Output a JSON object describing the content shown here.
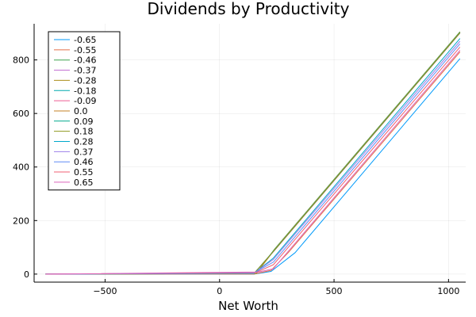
{
  "chart_data": {
    "type": "line",
    "title": "Dividends by Productivity",
    "xlabel": "Net Worth",
    "ylabel": "",
    "xlim": [
      -810,
      1075
    ],
    "ylim": [
      -30,
      935
    ],
    "xticks": [
      -500,
      0,
      500,
      1000
    ],
    "xtick_labels": [
      "−500",
      "0",
      "500",
      "1000"
    ],
    "yticks": [
      0,
      200,
      400,
      600,
      800
    ],
    "ytick_labels": [
      "0",
      "200",
      "400",
      "600",
      "800"
    ],
    "grid": true,
    "legend_position": "top-left",
    "series": [
      {
        "name": "-0.65",
        "color": "#009AFA",
        "x": [
          -760,
          150,
          225,
          330,
          1050
        ],
        "y": [
          0,
          0,
          10,
          80,
          805
        ]
      },
      {
        "name": "-0.55",
        "color": "#E36F47",
        "x": [
          -760,
          150,
          225,
          300,
          1050
        ],
        "y": [
          0,
          0,
          14,
          80,
          830
        ]
      },
      {
        "name": "-0.46",
        "color": "#3EA44E",
        "x": [
          -760,
          160,
          240,
          1050
        ],
        "y": [
          0,
          2,
          93,
          905
        ]
      },
      {
        "name": "-0.37",
        "color": "#C371D2",
        "x": [
          -760,
          150,
          240,
          1050
        ],
        "y": [
          0,
          2,
          88,
          900
        ]
      },
      {
        "name": "-0.28",
        "color": "#AC8E18",
        "x": [
          -760,
          160,
          240,
          1050
        ],
        "y": [
          0,
          2,
          92,
          904
        ]
      },
      {
        "name": "-0.18",
        "color": "#00A9AD",
        "x": [
          -760,
          160,
          240,
          1050
        ],
        "y": [
          0,
          2,
          91,
          903
        ]
      },
      {
        "name": "-0.09",
        "color": "#ED5E93",
        "x": [
          -760,
          150,
          240,
          1050
        ],
        "y": [
          0,
          2,
          90,
          902
        ]
      },
      {
        "name": "0.0",
        "color": "#C68225",
        "x": [
          -760,
          160,
          240,
          1050
        ],
        "y": [
          0,
          2,
          91,
          903
        ]
      },
      {
        "name": "0.09",
        "color": "#00A98E",
        "x": [
          -760,
          150,
          240,
          1050
        ],
        "y": [
          0,
          2,
          90,
          902
        ]
      },
      {
        "name": "0.18",
        "color": "#8E971E",
        "x": [
          -760,
          150,
          240,
          1050
        ],
        "y": [
          0,
          2,
          89,
          901
        ]
      },
      {
        "name": "0.28",
        "color": "#00A8CB",
        "x": [
          -760,
          150,
          235,
          1050
        ],
        "y": [
          0,
          3,
          60,
          880
        ]
      },
      {
        "name": "0.37",
        "color": "#9B7FE9",
        "x": [
          -760,
          150,
          235,
          1050
        ],
        "y": [
          0,
          3,
          55,
          870
        ]
      },
      {
        "name": "0.46",
        "color": "#608CF6",
        "x": [
          -760,
          150,
          235,
          1050
        ],
        "y": [
          0,
          4,
          45,
          860
        ]
      },
      {
        "name": "0.55",
        "color": "#F05F73",
        "x": [
          -760,
          160,
          235,
          1050
        ],
        "y": [
          0,
          6,
          35,
          848
        ]
      },
      {
        "name": "0.65",
        "color": "#DC63BC",
        "x": [
          -760,
          170,
          235,
          1050
        ],
        "y": [
          0,
          8,
          20,
          836
        ]
      }
    ]
  }
}
